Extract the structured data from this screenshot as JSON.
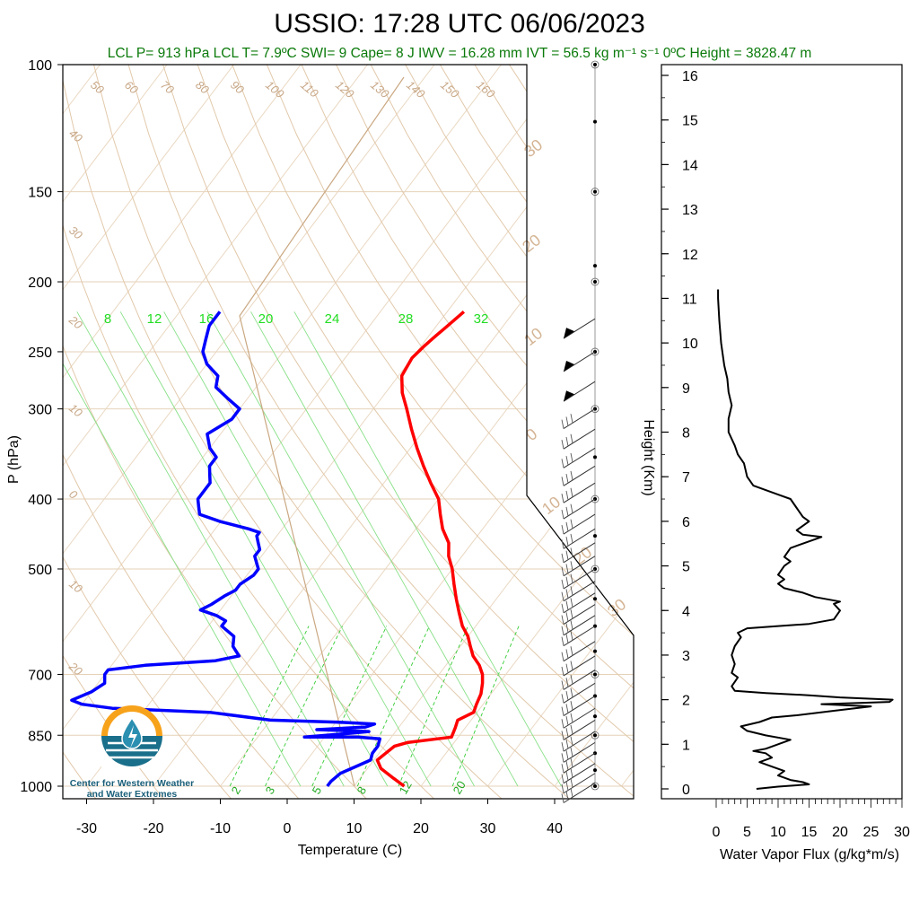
{
  "title": "USSIO: 17:28 UTC 06/06/2023",
  "subtitle": "LCL P= 913 hPa  LCL T= 7.9ºC  SWI= 9  Cape= 8 J  IWV = 16.28 mm  IVT = 56.5 kg m⁻¹ s⁻¹  0ºC Height = 3828.47 m",
  "logo": {
    "line1": "Center for Western Weather",
    "line2": "and Water Extremes"
  },
  "colors": {
    "temperature": "#ff0000",
    "dewpoint": "#0000ff",
    "mixing_ratio": "#22dd22",
    "adiabat": "#d2b48c",
    "flux": "#000000",
    "subtitle": "#0a7a0a"
  },
  "chart_data": [
    {
      "type": "line",
      "subtype": "skew-T log-P diagram",
      "xlabel": "Temperature (C)",
      "ylabel": "P (hPa)",
      "x_ticks": [
        "-30",
        "-20",
        "-10",
        "0",
        "10",
        "20",
        "30",
        "40"
      ],
      "y_ticks": [
        "100",
        "150",
        "200",
        "250",
        "300",
        "400",
        "500",
        "700",
        "850",
        "1000"
      ],
      "isotherm_labels": [
        "30",
        "20",
        "10",
        "0",
        "10",
        "20",
        "30"
      ],
      "dry_adiabat_top_labels": [
        "50",
        "60",
        "70",
        "80",
        "90",
        "100",
        "110",
        "120",
        "130",
        "140",
        "150",
        "160"
      ],
      "dry_adiabat_left_labels": [
        "40",
        "30",
        "20",
        "10",
        "0",
        "10",
        "20"
      ],
      "mixing_ratio_top_labels": [
        "8",
        "12",
        "16",
        "20",
        "24",
        "28",
        "32"
      ],
      "mixing_ratio_bottom_labels": [
        "2",
        "3",
        "5",
        "8",
        "12",
        "20"
      ],
      "series": [
        {
          "name": "",
          "color": "#ff0000",
          "points": [
            [
              17.5,
              1000
            ],
            [
              15,
              975
            ],
            [
              12,
              945
            ],
            [
              10.5,
              920
            ],
            [
              11,
              900
            ],
            [
              11.5,
              880
            ],
            [
              13,
              870
            ],
            [
              17,
              860
            ],
            [
              19,
              855
            ],
            [
              18.5,
              830
            ],
            [
              18,
              810
            ],
            [
              19.5,
              790
            ],
            [
              19,
              770
            ],
            [
              18.5,
              745
            ],
            [
              17.5,
              720
            ],
            [
              16.5,
              700
            ],
            [
              15,
              680
            ],
            [
              13,
              660
            ],
            [
              11.5,
              640
            ],
            [
              10,
              620
            ],
            [
              8,
              600
            ],
            [
              6,
              575
            ],
            [
              4,
              550
            ],
            [
              2,
              525
            ],
            [
              0,
              500
            ],
            [
              -2,
              480
            ],
            [
              -3.5,
              460
            ],
            [
              -6,
              440
            ],
            [
              -8,
              420
            ],
            [
              -10,
              400
            ],
            [
              -13,
              380
            ],
            [
              -16,
              360
            ],
            [
              -19,
              340
            ],
            [
              -22,
              320
            ],
            [
              -25,
              300
            ],
            [
              -27.5,
              285
            ],
            [
              -29.5,
              270
            ],
            [
              -30,
              255
            ],
            [
              -29.5,
              245
            ],
            [
              -29,
              238
            ],
            [
              -28.5,
              232
            ],
            [
              -28,
              226
            ],
            [
              -27.5,
              220
            ]
          ]
        },
        {
          "name": "",
          "color": "#0000ff",
          "points": [
            [
              6,
              1000
            ],
            [
              6,
              985
            ],
            [
              6.5,
              960
            ],
            [
              8,
              940
            ],
            [
              9.5,
              920
            ],
            [
              9,
              900
            ],
            [
              9,
              880
            ],
            [
              8.5,
              860
            ],
            [
              5,
              855
            ],
            [
              -3,
              855
            ],
            [
              2,
              847
            ],
            [
              6,
              840
            ],
            [
              -2,
              835
            ],
            [
              5,
              828
            ],
            [
              6,
              820
            ],
            [
              0,
              815
            ],
            [
              -10,
              810
            ],
            [
              -20,
              790
            ],
            [
              -35,
              780
            ],
            [
              -40,
              770
            ],
            [
              -42,
              760
            ],
            [
              -40,
              740
            ],
            [
              -39,
              720
            ],
            [
              -40,
              700
            ],
            [
              -40,
              690
            ],
            [
              -35,
              680
            ],
            [
              -25,
              670
            ],
            [
              -22,
              660
            ],
            [
              -24,
              640
            ],
            [
              -25,
              620
            ],
            [
              -28,
              600
            ],
            [
              -28,
              590
            ],
            [
              -30,
              580
            ],
            [
              -33,
              570
            ],
            [
              -32,
              560
            ],
            [
              -31,
              545
            ],
            [
              -30,
              535
            ],
            [
              -30,
              525
            ],
            [
              -29,
              510
            ],
            [
              -29,
              500
            ],
            [
              -30,
              490
            ],
            [
              -31,
              480
            ],
            [
              -31,
              470
            ],
            [
              -32,
              460
            ],
            [
              -33,
              450
            ],
            [
              -33,
              445
            ],
            [
              -35,
              440
            ],
            [
              -40,
              430
            ],
            [
              -44,
              420
            ],
            [
              -45,
              410
            ],
            [
              -46,
              400
            ],
            [
              -46,
              390
            ],
            [
              -46,
              380
            ],
            [
              -47,
              370
            ],
            [
              -48,
              360
            ],
            [
              -48,
              350
            ],
            [
              -50,
              340
            ],
            [
              -52,
              325
            ],
            [
              -50,
              310
            ],
            [
              -50,
              300
            ],
            [
              -53,
              290
            ],
            [
              -56,
              280
            ],
            [
              -57,
              270
            ],
            [
              -60,
              260
            ],
            [
              -62,
              250
            ],
            [
              -63,
              240
            ],
            [
              -64,
              230
            ],
            [
              -64,
              220
            ]
          ]
        }
      ]
    },
    {
      "type": "line",
      "xlabel": "Water Vapor Flux (g/kg*m/s)",
      "ylabel": "Height (Km)",
      "x_ticks": [
        "0",
        "5",
        "10",
        "15",
        "20",
        "25",
        "30"
      ],
      "y_ticks": [
        "0",
        "1",
        "2",
        "3",
        "4",
        "5",
        "6",
        "7",
        "8",
        "9",
        "10",
        "11",
        "12",
        "13",
        "14",
        "15",
        "16"
      ],
      "xlim": [
        0,
        30
      ],
      "ylim": [
        -0.3,
        16.3
      ],
      "series": [
        {
          "name": "",
          "color": "#000000",
          "points": [
            [
              6.5,
              0.0
            ],
            [
              10,
              0.05
            ],
            [
              15,
              0.1
            ],
            [
              14,
              0.15
            ],
            [
              12,
              0.2
            ],
            [
              10,
              0.3
            ],
            [
              11,
              0.4
            ],
            [
              9,
              0.5
            ],
            [
              7,
              0.6
            ],
            [
              9,
              0.7
            ],
            [
              8,
              0.8
            ],
            [
              6,
              0.85
            ],
            [
              8,
              0.9
            ],
            [
              10,
              1.0
            ],
            [
              12,
              1.1
            ],
            [
              8,
              1.2
            ],
            [
              5,
              1.3
            ],
            [
              4,
              1.4
            ],
            [
              7,
              1.5
            ],
            [
              9,
              1.6
            ],
            [
              13,
              1.65
            ],
            [
              19,
              1.75
            ],
            [
              25,
              1.85
            ],
            [
              17,
              1.9
            ],
            [
              28,
              1.95
            ],
            [
              28.5,
              2.0
            ],
            [
              20,
              2.05
            ],
            [
              15,
              2.1
            ],
            [
              8,
              2.15
            ],
            [
              3,
              2.2
            ],
            [
              2.5,
              2.3
            ],
            [
              3,
              2.4
            ],
            [
              3.5,
              2.5
            ],
            [
              2.5,
              2.6
            ],
            [
              3,
              2.8
            ],
            [
              2.5,
              3.0
            ],
            [
              3,
              3.2
            ],
            [
              4,
              3.4
            ],
            [
              3.5,
              3.5
            ],
            [
              5,
              3.6
            ],
            [
              10,
              3.65
            ],
            [
              15,
              3.7
            ],
            [
              19,
              3.8
            ],
            [
              20,
              4.0
            ],
            [
              19,
              4.15
            ],
            [
              20,
              4.2
            ],
            [
              16,
              4.3
            ],
            [
              14,
              4.4
            ],
            [
              11,
              4.5
            ],
            [
              10,
              4.6
            ],
            [
              11,
              4.7
            ],
            [
              10,
              4.8
            ],
            [
              11,
              5.0
            ],
            [
              12,
              5.1
            ],
            [
              11,
              5.2
            ],
            [
              12,
              5.4
            ],
            [
              14,
              5.5
            ],
            [
              16,
              5.6
            ],
            [
              17,
              5.65
            ],
            [
              14,
              5.7
            ],
            [
              13,
              5.8
            ],
            [
              15,
              6.0
            ],
            [
              14,
              6.1
            ],
            [
              13,
              6.3
            ],
            [
              12,
              6.5
            ],
            [
              10,
              6.6
            ],
            [
              8,
              6.7
            ],
            [
              6,
              6.8
            ],
            [
              5,
              7.0
            ],
            [
              4.5,
              7.3
            ],
            [
              3.5,
              7.5
            ],
            [
              3,
              7.7
            ],
            [
              2,
              8.0
            ],
            [
              2,
              8.3
            ],
            [
              2.5,
              8.6
            ],
            [
              2,
              8.9
            ],
            [
              1.8,
              9.2
            ],
            [
              1.3,
              9.5
            ],
            [
              1,
              9.8
            ],
            [
              0.8,
              10.0
            ],
            [
              0.5,
              10.5
            ],
            [
              0.3,
              11.0
            ],
            [
              0.3,
              11.2
            ]
          ]
        }
      ]
    }
  ],
  "wind_barbs": [
    {
      "p": 225
    },
    {
      "p": 250
    },
    {
      "p": 275
    },
    {
      "p": 300
    },
    {
      "p": 320
    },
    {
      "p": 340
    },
    {
      "p": 360
    },
    {
      "p": 380
    },
    {
      "p": 400
    },
    {
      "p": 420
    },
    {
      "p": 440
    },
    {
      "p": 460
    },
    {
      "p": 480
    },
    {
      "p": 500
    },
    {
      "p": 520
    },
    {
      "p": 540
    },
    {
      "p": 560
    },
    {
      "p": 580
    },
    {
      "p": 600
    },
    {
      "p": 630
    },
    {
      "p": 660
    },
    {
      "p": 690
    },
    {
      "p": 720
    },
    {
      "p": 750
    },
    {
      "p": 780
    },
    {
      "p": 810
    },
    {
      "p": 840
    },
    {
      "p": 870
    },
    {
      "p": 900
    },
    {
      "p": 930
    },
    {
      "p": 960
    },
    {
      "p": 990
    }
  ]
}
